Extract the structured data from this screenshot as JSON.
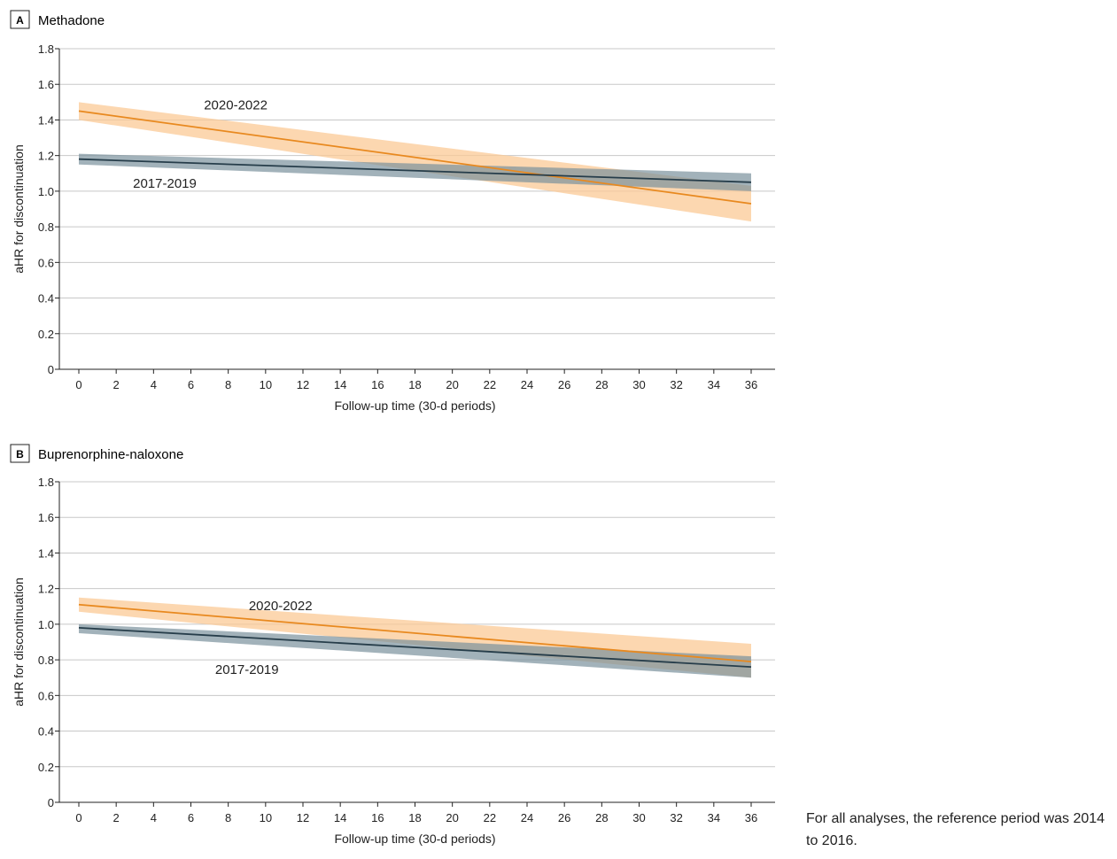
{
  "note": "For all analyses, the reference period was 2014 to 2016.",
  "colors": {
    "recent_line": "#e8891f",
    "recent_band": "#fbc996",
    "early_line": "#263d4a",
    "early_band": "#7a929d",
    "grid": "#c8c8c8",
    "axis": "#222222"
  },
  "chart_data": [
    {
      "type": "line",
      "panel_letter": "A",
      "title": "Methadone",
      "xlabel": "Follow-up time (30-d periods)",
      "ylabel": "aHR for discontinuation",
      "xlim": [
        0,
        36
      ],
      "ylim": [
        0,
        1.8
      ],
      "xticks": [
        0,
        2,
        4,
        6,
        8,
        10,
        12,
        14,
        16,
        18,
        20,
        22,
        24,
        26,
        28,
        30,
        32,
        34,
        36
      ],
      "yticks": [
        0,
        0.2,
        0.4,
        0.6,
        0.8,
        1.0,
        1.2,
        1.4,
        1.6,
        1.8
      ],
      "ytick_labels": [
        "0",
        "0.2",
        "0.4",
        "0.6",
        "0.8",
        "1.0",
        "1.2",
        "1.4",
        "1.6",
        "1.8"
      ],
      "grid": true,
      "series": [
        {
          "name": "2020-2022",
          "label_x": 8.4,
          "label_y": 1.46,
          "x": [
            0,
            36
          ],
          "y": [
            1.45,
            0.93
          ],
          "lower": [
            1.4,
            0.83
          ],
          "upper": [
            1.5,
            1.03
          ]
        },
        {
          "name": "2017-2019",
          "label_x": 4.6,
          "label_y": 1.02,
          "x": [
            0,
            36
          ],
          "y": [
            1.18,
            1.05
          ],
          "lower": [
            1.15,
            1.0
          ],
          "upper": [
            1.21,
            1.1
          ]
        }
      ]
    },
    {
      "type": "line",
      "panel_letter": "B",
      "title": "Buprenorphine-naloxone",
      "xlabel": "Follow-up time (30-d periods)",
      "ylabel": "aHR for discontinuation",
      "xlim": [
        0,
        36
      ],
      "ylim": [
        0,
        1.8
      ],
      "xticks": [
        0,
        2,
        4,
        6,
        8,
        10,
        12,
        14,
        16,
        18,
        20,
        22,
        24,
        26,
        28,
        30,
        32,
        34,
        36
      ],
      "yticks": [
        0,
        0.2,
        0.4,
        0.6,
        0.8,
        1.0,
        1.2,
        1.4,
        1.6,
        1.8
      ],
      "ytick_labels": [
        "0",
        "0.2",
        "0.4",
        "0.6",
        "0.8",
        "1.0",
        "1.2",
        "1.4",
        "1.6",
        "1.8"
      ],
      "grid": true,
      "series": [
        {
          "name": "2020-2022",
          "label_x": 10.8,
          "label_y": 1.08,
          "x": [
            0,
            36
          ],
          "y": [
            1.11,
            0.79
          ],
          "lower": [
            1.07,
            0.7
          ],
          "upper": [
            1.15,
            0.89
          ]
        },
        {
          "name": "2017-2019",
          "label_x": 9.0,
          "label_y": 0.72,
          "x": [
            0,
            36
          ],
          "y": [
            0.98,
            0.76
          ],
          "lower": [
            0.95,
            0.7
          ],
          "upper": [
            1.0,
            0.82
          ]
        }
      ]
    }
  ]
}
